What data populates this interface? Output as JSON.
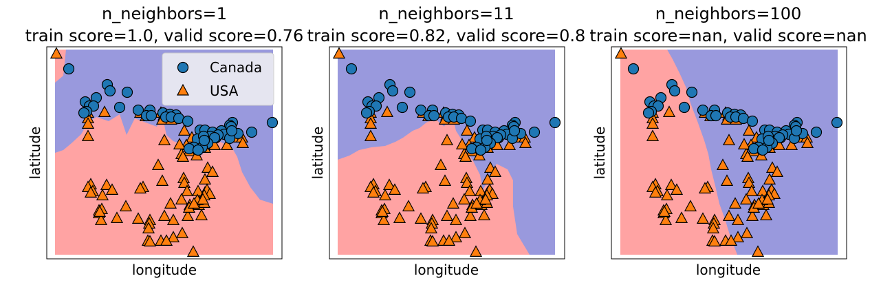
{
  "colors": {
    "canada_region": "#9999dd",
    "usa_region": "#ffa3a3",
    "canada_marker": "#1f77b4",
    "usa_marker": "#ff7f0e",
    "marker_edge": "#000000",
    "axes_edge": "#000000"
  },
  "legend": {
    "location": "upper-right of first panel",
    "items": [
      {
        "label": "Canada",
        "marker": "circle"
      },
      {
        "label": "USA",
        "marker": "triangle"
      }
    ]
  },
  "chart_data": [
    {
      "type": "scatter",
      "title": "n_neighbors=1",
      "subtitle": "train score=1.0, valid score=0.76",
      "xlabel": "longitude",
      "ylabel": "latitude",
      "grid": false,
      "ticks": "hidden",
      "background": "decision regions (red = USA, blue = Canada)"
    },
    {
      "type": "scatter",
      "title": "n_neighbors=11",
      "subtitle": "train score=0.82, valid score=0.8",
      "xlabel": "longitude",
      "ylabel": "latitude",
      "grid": false,
      "ticks": "hidden",
      "background": "decision regions (red = USA, blue = Canada)"
    },
    {
      "type": "scatter",
      "title": "n_neighbors=100",
      "subtitle": "train score=nan, valid score=nan",
      "xlabel": "longitude",
      "ylabel": "latitude",
      "grid": false,
      "ticks": "hidden",
      "background": "decision regions (red = USA, blue = Canada)"
    }
  ]
}
